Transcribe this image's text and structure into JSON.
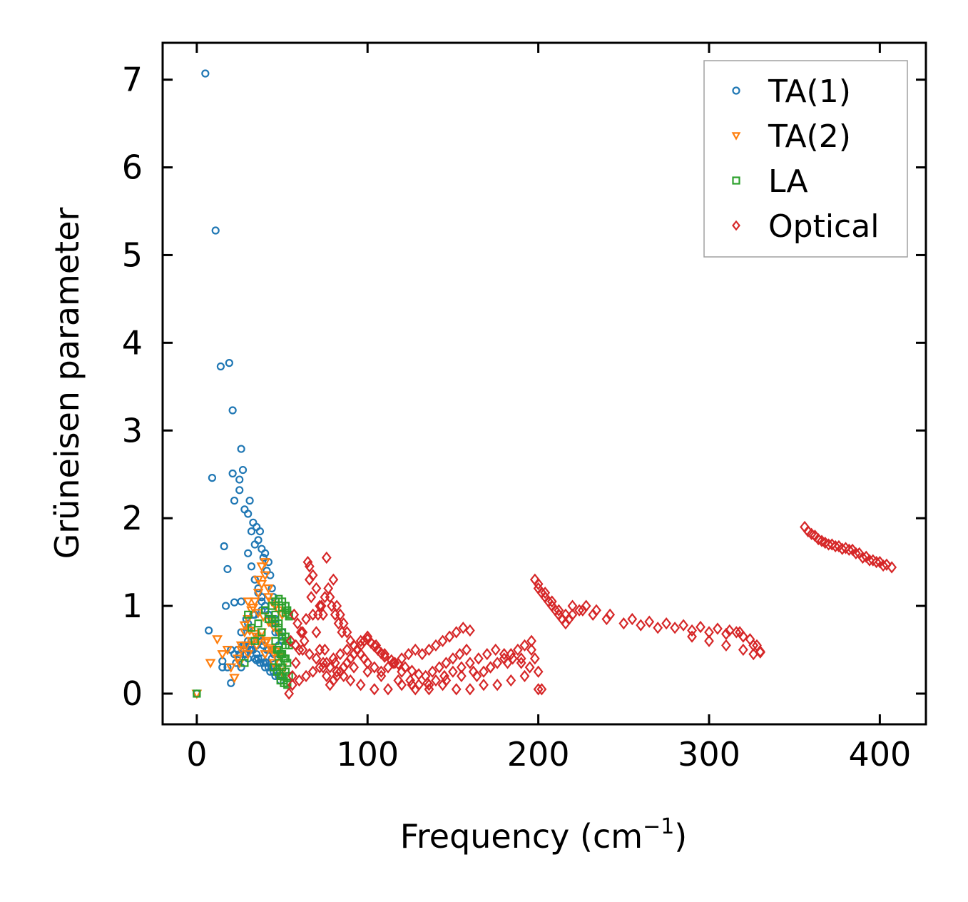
{
  "chart_data": {
    "type": "scatter",
    "title": "",
    "xlabel": "Frequency (cm",
    "xlabel_sup": "−1",
    "xlabel_end": ")",
    "ylabel": "Grüneisen parameter",
    "xlim": [
      -20,
      427
    ],
    "ylim": [
      -0.35,
      7.42
    ],
    "xticks": [
      0,
      100,
      200,
      300,
      400
    ],
    "yticks": [
      0,
      1,
      2,
      3,
      4,
      5,
      6,
      7
    ],
    "legend_position": "top-right",
    "series": [
      {
        "name": "TA(1)",
        "marker": "circle",
        "color": "#1f77b4",
        "x": [
          0,
          5,
          11,
          14,
          19,
          21,
          9,
          7,
          18,
          16,
          17,
          15,
          21,
          22,
          26,
          27,
          25,
          25,
          28,
          30,
          31,
          32,
          33,
          34,
          35,
          36,
          37,
          38,
          39,
          40,
          41,
          42,
          43,
          44,
          45,
          34,
          36,
          38,
          40,
          42,
          44,
          46,
          48,
          50,
          30,
          32,
          34,
          36,
          38,
          40,
          42,
          44,
          46,
          48,
          50,
          28,
          30,
          33,
          36,
          39,
          42,
          45,
          48,
          26,
          29,
          32,
          35,
          38,
          41,
          44,
          47,
          24,
          27,
          30,
          33,
          36,
          39,
          42,
          45,
          48,
          22,
          25,
          28,
          31,
          34,
          37,
          40,
          43,
          46,
          49,
          20,
          23,
          26,
          29,
          32,
          35,
          38,
          41,
          44,
          47,
          50,
          18,
          22,
          26,
          30,
          34,
          38,
          42,
          46,
          50,
          15,
          20,
          25,
          30,
          35,
          40,
          45,
          50
        ],
        "y": [
          0.0,
          7.07,
          5.28,
          3.73,
          3.77,
          3.23,
          2.46,
          0.72,
          1.42,
          1.68,
          1.0,
          0.37,
          2.51,
          2.2,
          2.79,
          2.55,
          2.44,
          2.32,
          2.1,
          2.05,
          2.2,
          1.85,
          1.95,
          1.7,
          1.9,
          1.75,
          1.85,
          1.65,
          1.55,
          1.6,
          1.4,
          1.5,
          1.35,
          1.2,
          1.1,
          1.3,
          1.2,
          1.1,
          1.0,
          0.9,
          0.85,
          0.8,
          0.7,
          0.6,
          1.6,
          1.45,
          1.3,
          1.15,
          1.05,
          0.95,
          0.9,
          0.8,
          0.7,
          0.55,
          0.45,
          0.55,
          0.75,
          0.9,
          0.65,
          0.55,
          0.5,
          0.45,
          0.35,
          0.7,
          0.85,
          0.6,
          0.45,
          0.4,
          0.35,
          0.3,
          0.25,
          0.5,
          0.55,
          0.6,
          0.5,
          0.4,
          0.35,
          0.3,
          0.25,
          0.2,
          0.45,
          0.4,
          0.45,
          0.5,
          0.4,
          0.35,
          0.3,
          0.25,
          0.2,
          0.15,
          0.12,
          0.35,
          0.3,
          0.45,
          0.5,
          0.55,
          0.6,
          0.5,
          0.4,
          0.3,
          0.2,
          0.3,
          1.04,
          1.05,
          0.8,
          0.9,
          0.95,
          0.9,
          0.85,
          0.7,
          0.3,
          0.5,
          0.45,
          0.4,
          0.38,
          0.36,
          0.3,
          0.2
        ]
      },
      {
        "name": "TA(2)",
        "marker": "triangle-down",
        "color": "#ff7f0e",
        "x": [
          0,
          8,
          12,
          15,
          18,
          20,
          22,
          24,
          26,
          28,
          30,
          32,
          34,
          36,
          38,
          40,
          42,
          44,
          46,
          48,
          50,
          30,
          33,
          36,
          39,
          42,
          45,
          48,
          28,
          31,
          34,
          37,
          40,
          43,
          46,
          49,
          26,
          29,
          32,
          35,
          38,
          41,
          44,
          47,
          50,
          25,
          30,
          35,
          40,
          45,
          50,
          36,
          38,
          40,
          42
        ],
        "y": [
          0.0,
          0.35,
          0.62,
          0.45,
          0.5,
          0.3,
          0.18,
          0.4,
          0.55,
          0.7,
          0.85,
          0.95,
          1.05,
          1.15,
          1.25,
          1.35,
          1.1,
          1.05,
          1.0,
          0.95,
          0.9,
          1.05,
          0.98,
          0.92,
          0.88,
          0.82,
          0.76,
          0.7,
          0.78,
          0.72,
          0.68,
          0.62,
          0.58,
          0.52,
          0.48,
          0.42,
          0.5,
          0.55,
          0.6,
          0.65,
          0.7,
          0.6,
          0.5,
          0.4,
          0.3,
          0.35,
          0.45,
          0.55,
          0.45,
          0.35,
          0.25,
          1.3,
          1.45,
          1.5,
          1.2
        ]
      },
      {
        "name": "LA",
        "marker": "square",
        "color": "#2ca02c",
        "x": [
          0,
          28,
          30,
          32,
          34,
          36,
          38,
          40,
          42,
          44,
          46,
          48,
          50,
          52,
          53,
          54,
          46,
          48,
          50,
          52,
          53,
          54,
          47,
          49,
          51,
          53,
          45,
          47,
          49,
          51,
          53,
          44,
          46,
          48,
          50,
          52,
          48,
          50,
          52,
          54,
          49,
          51,
          53,
          50,
          52,
          54,
          46,
          48,
          50,
          52
        ],
        "y": [
          0.0,
          0.35,
          0.9,
          0.75,
          0.6,
          0.8,
          0.7,
          0.95,
          0.85,
          1.0,
          1.05,
          1.08,
          1.05,
          1.0,
          0.95,
          0.9,
          0.8,
          0.75,
          0.7,
          0.65,
          0.6,
          0.55,
          0.5,
          0.45,
          0.4,
          0.35,
          0.3,
          0.25,
          0.2,
          0.15,
          0.12,
          0.85,
          0.9,
          0.8,
          0.65,
          0.55,
          0.35,
          0.3,
          0.25,
          0.2,
          0.15,
          0.12,
          0.1,
          0.98,
          0.92,
          0.88,
          0.6,
          0.5,
          0.45,
          0.4
        ]
      },
      {
        "name": "Optical",
        "marker": "diamond",
        "color": "#d62728",
        "x": [
          54,
          56,
          58,
          60,
          62,
          64,
          66,
          68,
          70,
          72,
          74,
          76,
          78,
          80,
          82,
          84,
          86,
          88,
          90,
          92,
          94,
          96,
          98,
          100,
          104,
          108,
          112,
          116,
          120,
          124,
          128,
          132,
          136,
          140,
          144,
          148,
          152,
          156,
          160,
          164,
          168,
          172,
          176,
          180,
          184,
          188,
          192,
          196,
          200,
          204,
          208,
          212,
          216,
          220,
          226,
          232,
          240,
          250,
          260,
          270,
          280,
          290,
          300,
          310,
          316,
          320,
          326,
          330,
          356,
          360,
          364,
          368,
          372,
          376,
          380,
          384,
          388,
          392,
          396,
          400,
          404,
          407,
          65,
          66,
          67,
          68,
          70,
          72,
          74,
          76,
          78,
          80,
          82,
          84,
          86,
          88,
          90,
          92,
          94,
          96,
          98,
          100,
          102,
          104,
          106,
          108,
          110,
          114,
          118,
          122,
          126,
          130,
          134,
          138,
          142,
          146,
          150,
          154,
          158,
          56,
          60,
          64,
          68,
          72,
          76,
          80,
          84,
          88,
          92,
          96,
          100,
          105,
          110,
          115,
          120,
          125,
          130,
          135,
          140,
          145,
          150,
          155,
          160,
          165,
          170,
          175,
          180,
          185,
          190,
          195,
          200,
          55,
          58,
          62,
          66,
          70,
          74,
          78,
          82,
          86,
          90,
          96,
          104,
          112,
          120,
          128,
          136,
          144,
          152,
          160,
          168,
          176,
          184,
          192,
          198,
          202,
          198,
          200,
          202,
          204,
          206,
          208,
          210,
          212,
          214,
          216,
          218,
          220,
          224,
          228,
          234,
          242,
          255,
          265,
          275,
          285,
          295,
          305,
          312,
          318,
          324,
          328,
          330,
          290,
          300,
          310,
          320,
          326,
          57,
          59,
          61,
          63,
          71,
          73,
          75,
          77,
          79,
          81,
          83,
          85,
          75,
          81,
          92,
          100,
          108,
          118,
          126,
          136,
          146,
          155,
          162,
          172,
          182,
          190,
          196,
          200,
          358,
          362,
          366,
          370,
          374,
          378,
          382,
          386,
          390,
          394,
          398,
          402
        ],
        "y": [
          0.0,
          0.2,
          0.35,
          0.5,
          0.7,
          0.85,
          1.45,
          1.35,
          1.2,
          1.0,
          0.9,
          1.55,
          1.1,
          1.3,
          1.0,
          0.9,
          0.8,
          0.7,
          0.6,
          0.55,
          0.5,
          0.45,
          0.4,
          0.35,
          0.3,
          0.25,
          0.3,
          0.35,
          0.4,
          0.45,
          0.5,
          0.45,
          0.5,
          0.55,
          0.6,
          0.65,
          0.7,
          0.75,
          0.72,
          0.2,
          0.25,
          0.3,
          0.35,
          0.4,
          0.45,
          0.5,
          0.55,
          0.6,
          1.25,
          1.15,
          1.05,
          0.95,
          0.9,
          1.0,
          0.95,
          0.9,
          0.85,
          0.8,
          0.78,
          0.75,
          0.75,
          0.72,
          0.7,
          0.68,
          0.7,
          0.65,
          0.55,
          0.47,
          1.9,
          1.82,
          1.76,
          1.72,
          1.7,
          1.68,
          1.66,
          1.64,
          1.6,
          1.56,
          1.52,
          1.5,
          1.47,
          1.44,
          1.5,
          1.3,
          1.1,
          0.9,
          0.7,
          0.5,
          0.3,
          0.2,
          0.1,
          0.15,
          0.2,
          0.25,
          0.3,
          0.35,
          0.4,
          0.45,
          0.5,
          0.55,
          0.6,
          0.62,
          0.58,
          0.54,
          0.5,
          0.46,
          0.42,
          0.38,
          0.34,
          0.3,
          0.26,
          0.22,
          0.2,
          0.25,
          0.3,
          0.35,
          0.4,
          0.45,
          0.5,
          0.1,
          0.15,
          0.2,
          0.25,
          0.3,
          0.35,
          0.4,
          0.45,
          0.5,
          0.55,
          0.6,
          0.65,
          0.55,
          0.45,
          0.35,
          0.25,
          0.15,
          0.1,
          0.12,
          0.15,
          0.2,
          0.25,
          0.3,
          0.35,
          0.4,
          0.45,
          0.5,
          0.45,
          0.4,
          0.35,
          0.3,
          0.25,
          0.6,
          0.55,
          0.5,
          0.45,
          0.4,
          0.35,
          0.3,
          0.25,
          0.2,
          0.15,
          0.1,
          0.05,
          0.05,
          0.1,
          0.05,
          0.05,
          0.1,
          0.05,
          0.05,
          0.1,
          0.1,
          0.15,
          0.2,
          0.4,
          0.05,
          1.3,
          1.2,
          1.15,
          1.1,
          1.05,
          1.0,
          0.95,
          0.9,
          0.85,
          0.8,
          0.85,
          0.9,
          0.95,
          1.0,
          0.95,
          0.9,
          0.85,
          0.82,
          0.8,
          0.78,
          0.76,
          0.74,
          0.72,
          0.7,
          0.62,
          0.55,
          0.48,
          0.65,
          0.6,
          0.55,
          0.5,
          0.45,
          0.9,
          0.8,
          0.7,
          0.6,
          0.9,
          1.0,
          1.1,
          1.2,
          1.0,
          0.9,
          0.8,
          0.7,
          0.5,
          0.35,
          0.3,
          0.25,
          0.2,
          0.15,
          0.1,
          0.1,
          0.15,
          0.2,
          0.25,
          0.3,
          0.35,
          0.4,
          0.5,
          0.05,
          1.85,
          1.8,
          1.74,
          1.7,
          1.68,
          1.65,
          1.64,
          1.6,
          1.55,
          1.52,
          1.5,
          1.46
        ]
      }
    ]
  }
}
